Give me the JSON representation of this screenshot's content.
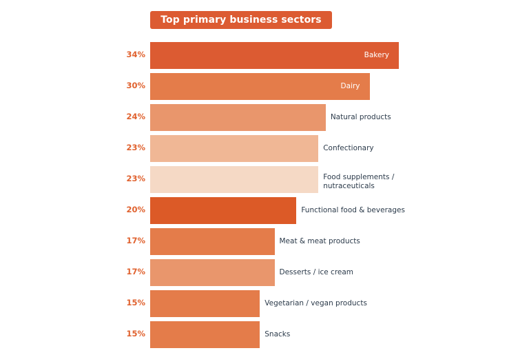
{
  "chart_data": {
    "type": "bar",
    "orientation": "horizontal",
    "title": "Top primary business sectors",
    "title_color": "#DC5B32",
    "categories": [
      "Bakery",
      "Dairy",
      "Natural products",
      "Confectionary",
      "Food supplements / nutraceuticals",
      "Functional food & beverages",
      "Meat & meat products",
      "Desserts / ice cream",
      "Vegetarian / vegan products",
      "Snacks"
    ],
    "values": [
      34,
      30,
      24,
      23,
      23,
      20,
      17,
      17,
      15,
      15
    ],
    "value_labels": [
      "34%",
      "30%",
      "24%",
      "23%",
      "23%",
      "20%",
      "17%",
      "17%",
      "15%",
      "15%"
    ],
    "colors": [
      "#DC5B32",
      "#E47C4A",
      "#E9966C",
      "#F0B795",
      "#F5D9C5",
      "#DC5A27",
      "#E47C4A",
      "#E9966C",
      "#E47C4A",
      "#E47C4A"
    ],
    "value_label_color": "#E0622F",
    "grid": false,
    "legend": "none",
    "xlim": [
      0,
      34
    ]
  }
}
